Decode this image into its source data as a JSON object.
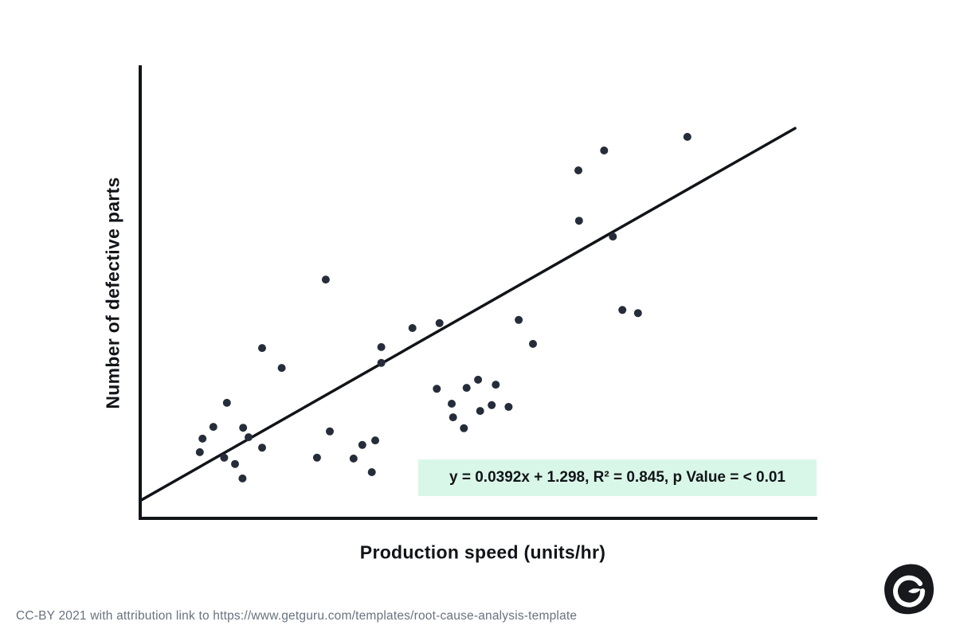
{
  "chart_data": {
    "type": "scatter",
    "title": "",
    "xlabel": "Production speed (units/hr)",
    "ylabel": "Number of defective parts",
    "xlim": [
      0,
      100
    ],
    "ylim": [
      0,
      100
    ],
    "axis_tick_labels_visible": false,
    "grid": false,
    "legend": "none",
    "point_color": "#262d3a",
    "point_radius": 5,
    "axis_color": "#111418",
    "trendline_color": "#111418",
    "points": [
      [
        27.4,
        52.7
      ],
      [
        80.8,
        84.2
      ],
      [
        68.5,
        81.2
      ],
      [
        64.7,
        76.8
      ],
      [
        64.8,
        65.7
      ],
      [
        69.8,
        62.2
      ],
      [
        18.0,
        37.6
      ],
      [
        20.9,
        33.2
      ],
      [
        12.8,
        25.5
      ],
      [
        10.8,
        20.2
      ],
      [
        15.2,
        20.0
      ],
      [
        9.2,
        17.6
      ],
      [
        16.0,
        17.9
      ],
      [
        8.8,
        14.6
      ],
      [
        18.0,
        15.6
      ],
      [
        12.4,
        13.4
      ],
      [
        14.0,
        12.0
      ],
      [
        15.1,
        8.8
      ],
      [
        28.0,
        19.2
      ],
      [
        26.1,
        13.4
      ],
      [
        31.5,
        13.2
      ],
      [
        32.8,
        16.2
      ],
      [
        34.7,
        17.2
      ],
      [
        34.2,
        10.2
      ],
      [
        40.2,
        42.0
      ],
      [
        44.2,
        43.1
      ],
      [
        35.6,
        37.8
      ],
      [
        35.6,
        34.3
      ],
      [
        43.8,
        28.6
      ],
      [
        46.0,
        25.3
      ],
      [
        46.2,
        22.3
      ],
      [
        48.2,
        28.8
      ],
      [
        47.8,
        19.9
      ],
      [
        49.9,
        30.6
      ],
      [
        52.5,
        29.5
      ],
      [
        51.9,
        25.0
      ],
      [
        54.4,
        24.6
      ],
      [
        50.2,
        23.7
      ],
      [
        55.9,
        43.8
      ],
      [
        58.0,
        38.5
      ],
      [
        71.2,
        46.0
      ],
      [
        73.5,
        45.3
      ]
    ],
    "trendline": {
      "x1": 0,
      "y1": 3.9,
      "x2": 96.7,
      "y2": 86.1
    },
    "annotation": {
      "text": "y = 0.0392x + 1.298, R² = 0.845, p Value = < 0.01",
      "bg_color": "#d9f7e8",
      "text_color": "#111418"
    }
  },
  "footer": {
    "license_text": "CC-BY 2021 with attribution link to https://www.getguru.com/templates/root-cause-analysis-template",
    "text_color": "#68727f"
  },
  "logo": {
    "name": "guru-logo",
    "bg_color": "#17191d",
    "fg_color": "#ffffff"
  }
}
